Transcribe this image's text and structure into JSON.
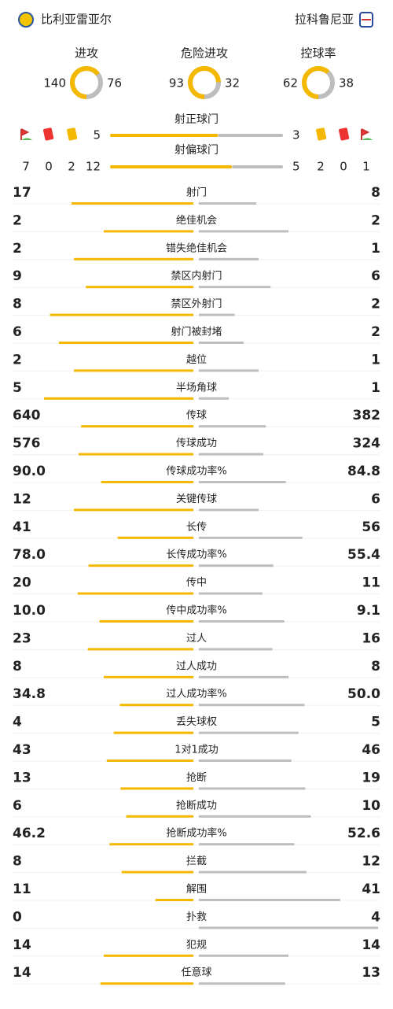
{
  "header": {
    "home": "比利亚雷亚尔",
    "away": "拉科鲁尼亚"
  },
  "rings": [
    {
      "name": "进攻",
      "values": [
        140,
        76
      ]
    },
    {
      "name": "危险进攻",
      "values": [
        93,
        32
      ]
    },
    {
      "name": "控球率",
      "values": [
        62,
        38
      ]
    }
  ],
  "shots": {
    "on_target": {
      "name": "射正球门",
      "values": [
        5,
        3
      ]
    },
    "off_target": {
      "name": "射偏球门",
      "values": [
        12,
        5
      ]
    },
    "home_cards": {
      "corners": 7,
      "red": 0,
      "yellow": 2
    },
    "away_cards": {
      "yellow": 2,
      "red": 0,
      "corners": 1
    }
  },
  "rows": [
    {
      "name": "射门",
      "values": [
        17,
        8
      ]
    },
    {
      "name": "绝佳机会",
      "values": [
        2,
        2
      ]
    },
    {
      "name": "错失绝佳机会",
      "values": [
        2,
        1
      ]
    },
    {
      "name": "禁区内射门",
      "values": [
        9,
        6
      ]
    },
    {
      "name": "禁区外射门",
      "values": [
        8,
        2
      ]
    },
    {
      "name": "射门被封堵",
      "values": [
        6,
        2
      ]
    },
    {
      "name": "越位",
      "values": [
        2,
        1
      ]
    },
    {
      "name": "半场角球",
      "values": [
        5,
        1
      ]
    },
    {
      "name": "传球",
      "values": [
        640,
        382
      ]
    },
    {
      "name": "传球成功",
      "values": [
        576,
        324
      ]
    },
    {
      "name": "传球成功率%",
      "values": [
        90.0,
        84.8
      ],
      "value_labels": [
        "90.0",
        "84.8"
      ]
    },
    {
      "name": "关键传球",
      "values": [
        12,
        6
      ]
    },
    {
      "name": "长传",
      "values": [
        41,
        56
      ]
    },
    {
      "name": "长传成功率%",
      "values": [
        78.0,
        55.4
      ],
      "value_labels": [
        "78.0",
        "55.4"
      ]
    },
    {
      "name": "传中",
      "values": [
        20,
        11
      ]
    },
    {
      "name": "传中成功率%",
      "values": [
        10.0,
        9.1
      ],
      "value_labels": [
        "10.0",
        "9.1"
      ]
    },
    {
      "name": "过人",
      "values": [
        23,
        16
      ]
    },
    {
      "name": "过人成功",
      "values": [
        8,
        8
      ]
    },
    {
      "name": "过人成功率%",
      "values": [
        34.8,
        50.0
      ],
      "value_labels": [
        "34.8",
        "50.0"
      ]
    },
    {
      "name": "丢失球权",
      "values": [
        4,
        5
      ]
    },
    {
      "name": "1对1成功",
      "values": [
        43,
        46
      ]
    },
    {
      "name": "抢断",
      "values": [
        13,
        19
      ]
    },
    {
      "name": "抢断成功",
      "values": [
        6,
        10
      ]
    },
    {
      "name": "抢断成功率%",
      "values": [
        46.2,
        52.6
      ],
      "value_labels": [
        "46.2",
        "52.6"
      ]
    },
    {
      "name": "拦截",
      "values": [
        8,
        12
      ]
    },
    {
      "name": "解围",
      "values": [
        11,
        41
      ]
    },
    {
      "name": "扑救",
      "values": [
        0,
        4
      ]
    },
    {
      "name": "犯规",
      "values": [
        14,
        14
      ]
    },
    {
      "name": "任意球",
      "values": [
        14,
        13
      ]
    }
  ]
}
